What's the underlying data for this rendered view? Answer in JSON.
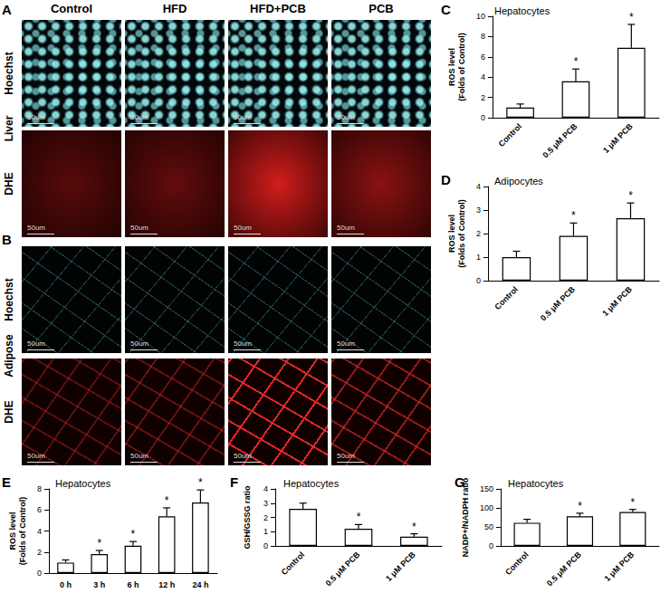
{
  "figure": {
    "column_labels": [
      "Control",
      "HFD",
      "HFD+PCB",
      "PCB"
    ],
    "image_panels": [
      {
        "panel": "A",
        "tissue": "Liver",
        "stains": [
          "Hoechst",
          "DHE"
        ],
        "scale_bar": "50um"
      },
      {
        "panel": "B",
        "tissue": "Adipose",
        "stains": [
          "Hoechst",
          "DHE"
        ],
        "scale_bar": "50um"
      }
    ]
  },
  "chart_data": [
    {
      "panel": "C",
      "type": "bar",
      "title": "Hepatocytes",
      "ylabel": "ROS level\n(Folds of Control)",
      "categories": [
        "Control",
        "0.5 μM PCB",
        "1 μM PCB"
      ],
      "values": [
        1.0,
        3.6,
        6.9
      ],
      "errors": [
        0.35,
        1.2,
        2.3
      ],
      "significance": [
        null,
        "*",
        "*"
      ],
      "color": "#ffffff",
      "ylim": [
        0,
        10
      ],
      "yticks": [
        0,
        2,
        4,
        6,
        8,
        10
      ],
      "grid": false
    },
    {
      "panel": "D",
      "type": "bar",
      "title": "Adipocytes",
      "ylabel": "ROS level\n(Folds of Control)",
      "categories": [
        "Control",
        "0.5 μM PCB",
        "1 μM PCB"
      ],
      "values": [
        1.0,
        1.9,
        2.65
      ],
      "errors": [
        0.25,
        0.55,
        0.65
      ],
      "significance": [
        null,
        "*",
        "*"
      ],
      "color": "#ffffff",
      "ylim": [
        0,
        4
      ],
      "yticks": [
        0,
        1,
        2,
        3,
        4
      ],
      "grid": false
    },
    {
      "panel": "E",
      "type": "bar",
      "title": "Hepatocytes",
      "ylabel": "ROS level\n(Folds of Control)",
      "categories": [
        "0 h",
        "3 h",
        "6 h",
        "12 h",
        "24 h"
      ],
      "values": [
        1.0,
        1.8,
        2.6,
        5.4,
        6.7
      ],
      "errors": [
        0.25,
        0.35,
        0.4,
        0.8,
        1.2
      ],
      "significance": [
        null,
        "*",
        "*",
        "*",
        "*"
      ],
      "color": "#ffffff",
      "ylim": [
        0,
        8
      ],
      "yticks": [
        0,
        2,
        4,
        6,
        8
      ],
      "grid": false
    },
    {
      "panel": "F",
      "type": "bar",
      "title": "Hepatocytes",
      "ylabel": "GSH/GSSG ratio",
      "categories": [
        "Control",
        "0.5 μM PCB",
        "1 μM PCB"
      ],
      "values": [
        2.6,
        1.2,
        0.65
      ],
      "errors": [
        0.4,
        0.3,
        0.2
      ],
      "significance": [
        null,
        "*",
        "*"
      ],
      "color": "#ffffff",
      "ylim": [
        0,
        4
      ],
      "yticks": [
        0,
        1,
        2,
        3,
        4
      ],
      "grid": false
    },
    {
      "panel": "G",
      "type": "bar",
      "title": "Hepatocytes",
      "ylabel": "NADP+/NADPH ratio",
      "categories": [
        "Control",
        "0.5 μM PCB",
        "1 μM PCB"
      ],
      "values": [
        61,
        78,
        89
      ],
      "errors": [
        9,
        8,
        7
      ],
      "significance": [
        null,
        "*",
        "*"
      ],
      "color": "#ffffff",
      "ylim": [
        0,
        150
      ],
      "yticks": [
        0,
        50,
        100,
        150
      ],
      "grid": false
    }
  ]
}
